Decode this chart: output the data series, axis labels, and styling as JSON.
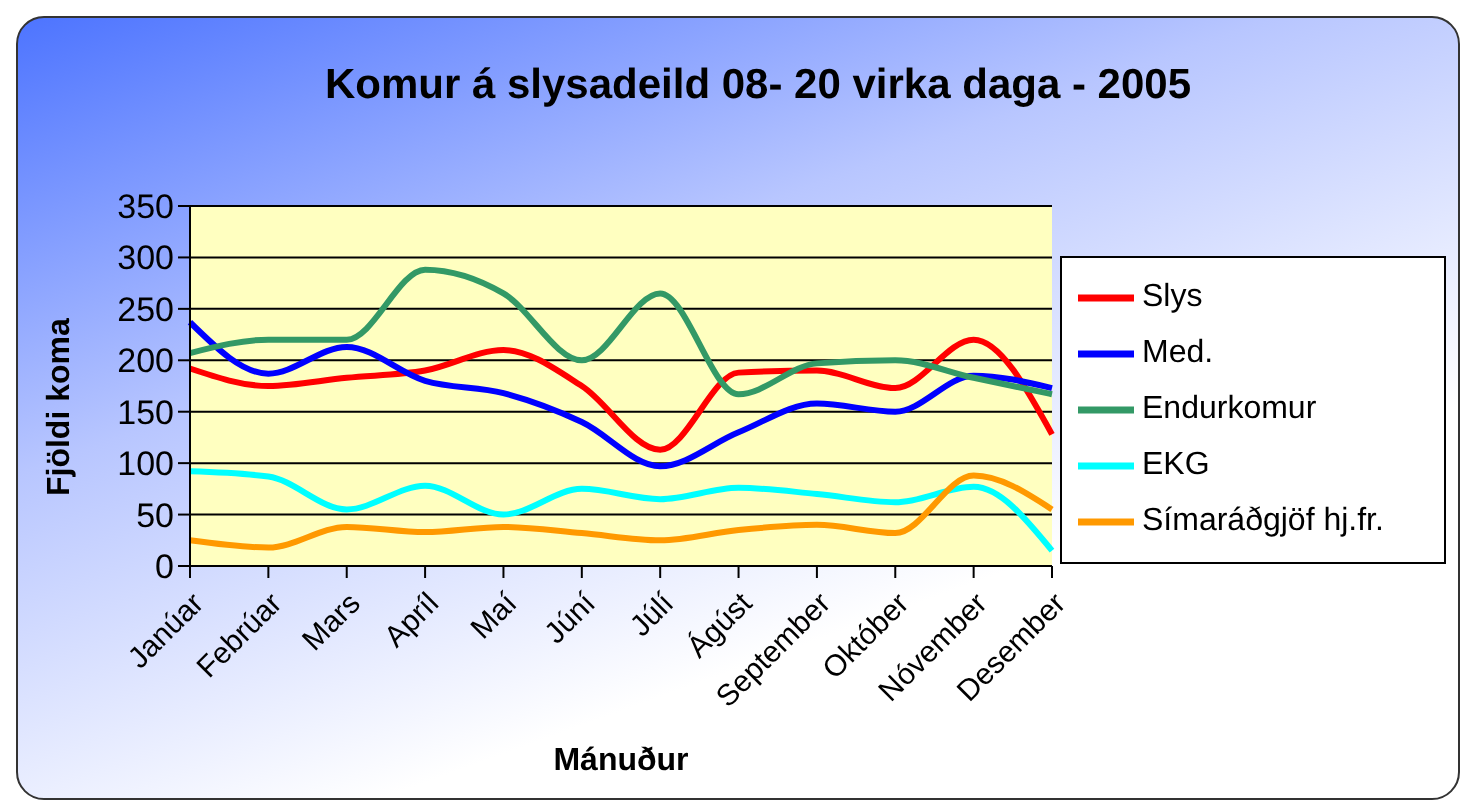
{
  "chart_data": {
    "type": "line",
    "title": "Komur á slysadeild 08- 20 virka daga - 2005",
    "xlabel": "Mánuður",
    "ylabel": "Fjöldi koma",
    "categories": [
      "Janúar",
      "Febrúar",
      "Mars",
      "Apríl",
      "Maí",
      "Júní",
      "Júlí",
      "Ágúst",
      "September",
      "Október",
      "Nóvember",
      "Desember"
    ],
    "series": [
      {
        "name": "Slys",
        "color": "#ff0000",
        "values": [
          192,
          175,
          183,
          190,
          210,
          175,
          113,
          188,
          190,
          173,
          220,
          128
        ]
      },
      {
        "name": "Med.",
        "color": "#0000ff",
        "values": [
          237,
          187,
          213,
          180,
          168,
          140,
          97,
          130,
          158,
          150,
          185,
          173
        ]
      },
      {
        "name": "Endurkomur",
        "color": "#339966",
        "values": [
          207,
          220,
          220,
          288,
          265,
          200,
          265,
          167,
          197,
          200,
          183,
          167
        ]
      },
      {
        "name": "EKG",
        "color": "#00ffff",
        "values": [
          92,
          87,
          55,
          78,
          50,
          75,
          65,
          76,
          70,
          62,
          77,
          15
        ]
      },
      {
        "name": "Símaráðgjöf hj.fr.",
        "color": "#ff9900",
        "values": [
          25,
          18,
          38,
          33,
          38,
          32,
          25,
          35,
          40,
          32,
          88,
          55
        ]
      }
    ],
    "ylim": [
      0,
      350
    ],
    "yticks": [
      0,
      50,
      100,
      150,
      200,
      250,
      300,
      350
    ],
    "grid": "y",
    "legend": "right",
    "marker": "none",
    "line_style": "solid"
  }
}
